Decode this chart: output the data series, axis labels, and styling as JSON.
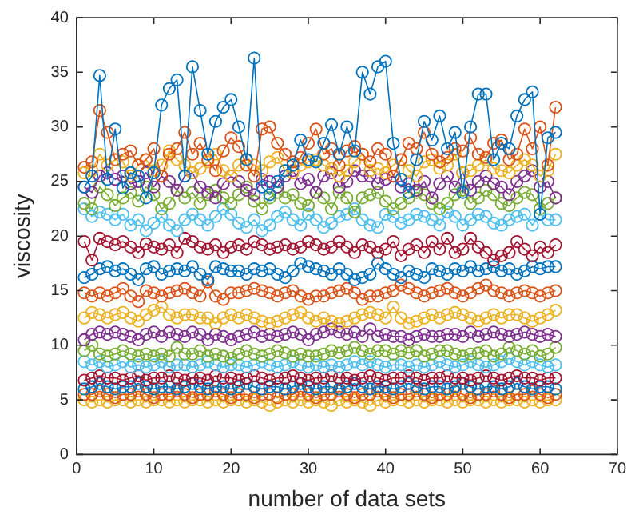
{
  "chart_data": {
    "type": "line",
    "xlabel": "number of data sets",
    "ylabel": "viscosity",
    "marker": "circle",
    "line_style": "solid",
    "grid": false,
    "legend": false,
    "xlim": [
      0,
      70
    ],
    "xticks": [
      0,
      10,
      20,
      30,
      40,
      50,
      60,
      70
    ],
    "ylim": [
      0,
      40
    ],
    "yticks": [
      0,
      5,
      10,
      15,
      20,
      25,
      30,
      35,
      40
    ],
    "x": [
      1,
      2,
      3,
      4,
      5,
      6,
      7,
      8,
      9,
      10,
      11,
      12,
      13,
      14,
      15,
      16,
      17,
      18,
      19,
      20,
      21,
      22,
      23,
      24,
      25,
      26,
      27,
      28,
      29,
      30,
      31,
      32,
      33,
      34,
      35,
      36,
      37,
      38,
      39,
      40,
      41,
      42,
      43,
      44,
      45,
      46,
      47,
      48,
      49,
      50,
      51,
      52,
      53,
      54,
      55,
      56,
      57,
      58,
      59,
      60,
      61,
      62
    ],
    "series": [
      {
        "color": "#0072bd",
        "values": [
          24.5,
          25.5,
          34.7,
          25.2,
          29.8,
          24.4,
          25.8,
          25.5,
          23.5,
          25.8,
          32.0,
          33.5,
          34.3,
          25.5,
          35.5,
          31.5,
          27.5,
          30.5,
          31.8,
          32.5,
          30.0,
          27.0,
          36.3,
          24.5,
          23.8,
          25.0,
          26.0,
          26.5,
          28.8,
          27.0,
          26.8,
          28.5,
          30.2,
          27.5,
          30.0,
          27.8,
          35.0,
          33.0,
          35.5,
          36.0,
          28.5,
          25.2,
          24.0,
          27.0,
          30.5,
          28.8,
          31.0,
          28.0,
          29.5,
          24.0,
          30.0,
          33.0,
          33.0,
          27.0,
          28.5,
          28.0,
          31.0,
          32.5,
          33.2,
          22.0,
          29.0,
          29.5
        ]
      },
      {
        "color": "#d95319",
        "values": [
          26.3,
          26.8,
          31.5,
          29.5,
          27.0,
          27.5,
          27.8,
          26.5,
          27.0,
          28.0,
          25.5,
          27.5,
          28.0,
          29.5,
          27.5,
          28.5,
          27.0,
          26.0,
          27.8,
          29.0,
          28.2,
          26.5,
          25.5,
          29.8,
          30.0,
          28.5,
          27.5,
          26.8,
          27.2,
          28.5,
          29.8,
          27.5,
          28.0,
          26.5,
          27.8,
          28.2,
          27.5,
          26.8,
          28.0,
          27.5,
          25.5,
          27.0,
          28.5,
          28.0,
          29.5,
          27.5,
          26.8,
          27.2,
          28.0,
          27.8,
          29.0,
          27.5,
          27.2,
          28.5,
          28.8,
          27.0,
          27.5,
          29.8,
          28.0,
          30.0,
          26.5,
          31.8
        ]
      },
      {
        "color": "#edb120",
        "values": [
          25.8,
          26.0,
          27.5,
          26.5,
          27.0,
          26.8,
          25.5,
          26.5,
          27.0,
          26.0,
          26.5,
          27.8,
          27.0,
          26.5,
          25.8,
          26.2,
          26.8,
          27.5,
          26.0,
          25.5,
          26.5,
          27.0,
          26.5,
          26.0,
          26.8,
          27.2,
          26.0,
          25.8,
          26.5,
          26.8,
          27.0,
          26.5,
          26.2,
          25.5,
          26.0,
          26.8,
          27.5,
          26.0,
          26.2,
          25.8,
          26.5,
          27.0,
          26.0,
          25.5,
          26.8,
          27.0,
          26.2,
          26.5,
          27.5,
          25.8,
          26.0,
          26.5,
          27.0,
          26.2,
          26.0,
          25.8,
          26.5,
          27.0,
          26.5,
          25.5,
          26.0,
          27.5
        ]
      },
      {
        "color": "#7e2f8e",
        "values": [
          24.5,
          24.0,
          25.5,
          25.8,
          25.2,
          25.5,
          24.8,
          25.0,
          25.8,
          24.5,
          25.5,
          25.0,
          24.2,
          25.5,
          25.8,
          24.5,
          24.0,
          23.5,
          24.8,
          25.5,
          25.0,
          24.2,
          23.8,
          25.2,
          25.0,
          24.5,
          25.5,
          26.0,
          24.8,
          25.2,
          24.0,
          25.5,
          25.8,
          24.5,
          25.0,
          26.0,
          25.5,
          25.5,
          24.8,
          25.2,
          25.5,
          24.5,
          24.8,
          24.2,
          25.0,
          23.5,
          24.8,
          25.5,
          24.5,
          25.8,
          24.2,
          25.0,
          25.5,
          24.8,
          24.5,
          23.8,
          25.0,
          25.5,
          26.0,
          24.5,
          25.0,
          23.5
        ]
      },
      {
        "color": "#77ac30",
        "values": [
          23.0,
          22.5,
          24.5,
          23.8,
          22.8,
          23.5,
          24.0,
          23.2,
          24.5,
          23.8,
          22.5,
          23.0,
          24.2,
          23.5,
          24.0,
          23.0,
          23.8,
          24.2,
          23.5,
          23.0,
          23.8,
          24.5,
          23.2,
          22.5,
          23.5,
          24.0,
          23.5,
          23.8,
          23.0,
          22.8,
          24.0,
          23.5,
          22.5,
          24.0,
          23.5,
          22.2,
          23.5,
          23.8,
          24.0,
          23.2,
          22.5,
          23.0,
          23.5,
          24.0,
          23.8,
          23.0,
          22.5,
          23.0,
          23.8,
          24.2,
          23.0,
          23.5,
          24.2,
          23.8,
          23.0,
          22.8,
          23.5,
          24.0,
          23.8,
          22.5,
          23.0,
          23.5
        ]
      },
      {
        "color": "#4dbeee",
        "values": [
          22.5,
          21.8,
          22.2,
          22.0,
          21.5,
          22.0,
          21.0,
          21.5,
          20.5,
          21.2,
          21.8,
          21.0,
          20.5,
          21.5,
          22.0,
          21.5,
          21.0,
          21.8,
          22.5,
          22.0,
          21.2,
          20.8,
          21.5,
          20.5,
          21.0,
          21.8,
          22.2,
          21.5,
          21.0,
          22.0,
          21.5,
          20.8,
          21.2,
          21.8,
          22.0,
          22.5,
          21.5,
          21.0,
          20.8,
          22.0,
          21.8,
          21.2,
          21.5,
          22.0,
          21.8,
          21.5,
          21.0,
          22.2,
          21.8,
          21.0,
          21.5,
          22.0,
          21.8,
          21.2,
          21.0,
          21.5,
          21.8,
          22.0,
          21.0,
          22.0,
          21.5,
          21.5
        ]
      },
      {
        "color": "#a2142f",
        "values": [
          19.5,
          17.8,
          19.8,
          19.5,
          19.2,
          19.5,
          19.0,
          18.5,
          19.3,
          19.0,
          18.8,
          19.2,
          18.5,
          19.8,
          19.5,
          19.0,
          18.8,
          19.2,
          18.5,
          19.0,
          19.2,
          18.8,
          19.5,
          19.2,
          18.8,
          19.0,
          19.2,
          18.8,
          19.0,
          19.5,
          19.2,
          18.8,
          19.0,
          19.5,
          19.0,
          18.5,
          19.2,
          19.0,
          18.5,
          18.8,
          19.5,
          18.2,
          18.8,
          19.2,
          18.5,
          19.5,
          18.8,
          19.8,
          18.5,
          18.8,
          19.8,
          19.0,
          18.5,
          17.8,
          18.2,
          18.5,
          19.5,
          18.8,
          18.2,
          19.0,
          18.5,
          19.2
        ]
      },
      {
        "color": "#0072bd",
        "values": [
          16.2,
          16.5,
          17.0,
          17.2,
          16.8,
          17.0,
          16.5,
          16.0,
          17.0,
          17.2,
          16.5,
          16.8,
          17.0,
          16.8,
          17.2,
          16.5,
          16.0,
          17.2,
          17.0,
          16.8,
          16.8,
          16.5,
          17.0,
          16.8,
          17.0,
          16.5,
          16.2,
          16.8,
          17.5,
          17.2,
          17.0,
          16.8,
          16.5,
          17.0,
          16.5,
          16.0,
          16.2,
          16.5,
          17.5,
          17.0,
          16.5,
          16.2,
          16.8,
          16.5,
          16.2,
          17.0,
          16.8,
          16.5,
          17.0,
          16.8,
          17.2,
          16.8,
          17.0,
          17.2,
          16.8,
          17.0,
          16.5,
          16.8,
          17.2,
          17.0,
          17.2,
          17.2
        ]
      },
      {
        "color": "#d95319",
        "values": [
          14.8,
          14.5,
          14.8,
          14.5,
          14.8,
          15.2,
          14.5,
          14.0,
          15.0,
          14.8,
          14.5,
          14.8,
          15.0,
          15.2,
          14.8,
          14.5,
          15.8,
          14.5,
          14.2,
          14.8,
          14.8,
          15.0,
          15.2,
          15.0,
          14.8,
          14.5,
          14.8,
          15.0,
          14.5,
          14.2,
          14.5,
          14.5,
          14.8,
          15.0,
          15.2,
          14.8,
          14.2,
          14.5,
          14.5,
          14.8,
          15.0,
          15.5,
          15.2,
          14.8,
          14.5,
          14.8,
          15.0,
          15.2,
          14.8,
          14.5,
          14.8,
          15.2,
          15.5,
          15.0,
          14.8,
          14.5,
          14.8,
          15.0,
          14.8,
          14.5,
          14.8,
          15.0
        ]
      },
      {
        "color": "#edb120",
        "values": [
          12.5,
          13.0,
          12.8,
          12.5,
          12.8,
          13.0,
          12.5,
          12.2,
          12.8,
          13.2,
          13.5,
          12.8,
          12.5,
          12.8,
          12.8,
          12.5,
          12.5,
          12.0,
          12.5,
          12.8,
          12.5,
          12.8,
          12.5,
          12.2,
          12.0,
          12.2,
          12.5,
          12.8,
          13.0,
          12.5,
          12.2,
          12.5,
          12.2,
          12.0,
          12.2,
          12.5,
          12.8,
          13.0,
          12.8,
          12.5,
          13.5,
          12.5,
          12.0,
          12.2,
          12.5,
          12.8,
          12.5,
          12.8,
          13.0,
          12.8,
          12.5,
          12.2,
          12.5,
          12.8,
          12.5,
          12.8,
          12.8,
          12.5,
          12.2,
          12.5,
          12.8,
          13.2
        ]
      },
      {
        "color": "#7e2f8e",
        "values": [
          10.5,
          11.0,
          11.2,
          11.0,
          11.2,
          11.0,
          10.8,
          10.5,
          11.0,
          11.2,
          10.8,
          11.2,
          11.0,
          10.8,
          11.2,
          11.0,
          10.5,
          11.0,
          10.8,
          10.5,
          10.8,
          11.0,
          11.2,
          10.8,
          11.0,
          10.8,
          11.0,
          11.2,
          11.0,
          10.5,
          11.0,
          11.2,
          11.5,
          11.2,
          11.0,
          11.2,
          10.8,
          11.5,
          10.8,
          11.0,
          10.8,
          10.8,
          10.5,
          10.8,
          11.0,
          10.8,
          10.8,
          11.0,
          11.0,
          10.8,
          11.2,
          10.8,
          11.0,
          11.2,
          11.0,
          10.8,
          11.0,
          11.2,
          11.0,
          10.8,
          11.0,
          10.8
        ]
      },
      {
        "color": "#77ac30",
        "values": [
          9.5,
          10.0,
          9.2,
          9.0,
          9.2,
          9.5,
          9.2,
          9.0,
          9.2,
          9.0,
          9.2,
          9.0,
          9.8,
          9.2,
          9.2,
          9.5,
          9.0,
          9.2,
          9.0,
          8.8,
          9.2,
          9.5,
          9.2,
          9.0,
          9.2,
          9.5,
          9.3,
          9.0,
          9.2,
          9.0,
          9.0,
          9.2,
          9.5,
          9.3,
          9.5,
          9.8,
          9.5,
          9.2,
          9.5,
          9.5,
          9.2,
          9.5,
          9.3,
          9.5,
          9.0,
          9.2,
          9.5,
          9.5,
          9.2,
          9.0,
          9.2,
          9.3,
          9.5,
          9.0,
          9.2,
          9.8,
          9.5,
          9.2,
          9.5,
          9.0,
          9.2,
          9.8
        ]
      },
      {
        "color": "#4dbeee",
        "values": [
          8.5,
          8.2,
          8.5,
          8.0,
          8.2,
          8.5,
          8.0,
          8.2,
          8.0,
          8.2,
          8.5,
          8.0,
          8.2,
          8.2,
          8.0,
          8.2,
          8.5,
          8.2,
          8.0,
          8.2,
          8.2,
          8.0,
          8.2,
          8.5,
          8.2,
          8.0,
          8.2,
          8.5,
          8.2,
          8.0,
          8.2,
          8.0,
          8.2,
          8.0,
          8.2,
          8.5,
          8.2,
          8.5,
          8.2,
          8.0,
          8.2,
          8.2,
          8.0,
          8.2,
          8.0,
          8.2,
          8.5,
          8.2,
          8.0,
          8.2,
          8.5,
          8.2,
          8.0,
          8.2,
          8.5,
          8.8,
          8.5,
          8.2,
          8.5,
          8.2,
          8.0,
          8.2
        ]
      },
      {
        "color": "#a2142f",
        "values": [
          6.8,
          7.0,
          7.2,
          7.0,
          7.0,
          6.8,
          7.0,
          7.2,
          6.8,
          7.0,
          7.0,
          7.2,
          7.0,
          6.8,
          7.0,
          7.0,
          6.8,
          7.2,
          7.0,
          7.0,
          6.8,
          7.0,
          7.2,
          7.0,
          6.8,
          7.0,
          7.0,
          7.2,
          7.0,
          6.8,
          7.0,
          7.0,
          7.2,
          7.0,
          7.0,
          6.8,
          7.0,
          7.2,
          7.0,
          6.8,
          7.0,
          7.0,
          7.2,
          7.0,
          6.8,
          7.0,
          7.0,
          7.2,
          7.0,
          7.0,
          6.8,
          7.0,
          7.2,
          7.0,
          6.8,
          7.0,
          7.2,
          7.0,
          7.0,
          6.8,
          7.0,
          7.0
        ]
      },
      {
        "color": "#0072bd",
        "values": [
          6.0,
          6.2,
          6.5,
          6.2,
          6.0,
          6.2,
          6.2,
          6.5,
          6.2,
          6.0,
          6.2,
          6.2,
          6.0,
          6.2,
          6.5,
          6.2,
          6.0,
          6.2,
          6.2,
          6.0,
          6.2,
          6.5,
          6.2,
          6.0,
          6.2,
          6.2,
          6.0,
          6.2,
          6.5,
          6.2,
          6.0,
          6.2,
          6.2,
          6.0,
          6.2,
          6.5,
          6.2,
          6.0,
          6.2,
          6.2,
          6.0,
          6.2,
          6.5,
          6.2,
          6.0,
          6.2,
          6.2,
          6.0,
          6.2,
          6.5,
          6.2,
          6.0,
          6.2,
          6.2,
          6.0,
          6.2,
          6.5,
          6.2,
          6.0,
          6.2,
          6.2,
          6.0
        ]
      },
      {
        "color": "#d95319",
        "values": [
          5.5,
          5.5,
          5.8,
          5.5,
          5.2,
          5.5,
          5.5,
          5.8,
          5.5,
          5.2,
          5.5,
          5.5,
          5.8,
          5.5,
          5.2,
          5.5,
          5.5,
          5.8,
          5.5,
          5.2,
          5.5,
          5.5,
          5.2,
          5.5,
          5.5,
          5.2,
          5.5,
          5.5,
          5.8,
          5.5,
          5.2,
          5.5,
          5.5,
          5.8,
          5.5,
          5.2,
          5.5,
          5.5,
          5.8,
          5.5,
          5.2,
          5.5,
          5.5,
          5.8,
          5.5,
          5.2,
          5.5,
          5.5,
          5.8,
          5.5,
          5.2,
          5.5,
          5.5,
          5.8,
          5.5,
          5.2,
          5.5,
          5.5,
          5.8,
          5.5,
          5.2,
          5.5
        ]
      },
      {
        "color": "#edb120",
        "values": [
          5.0,
          4.8,
          5.0,
          4.8,
          5.0,
          5.0,
          4.8,
          5.0,
          4.8,
          5.0,
          5.0,
          4.8,
          5.0,
          4.8,
          5.0,
          5.0,
          4.8,
          5.0,
          4.8,
          5.0,
          5.0,
          4.8,
          5.0,
          4.8,
          4.5,
          4.8,
          5.0,
          4.8,
          5.0,
          4.8,
          5.0,
          4.8,
          4.5,
          5.0,
          4.8,
          5.0,
          4.8,
          4.5,
          5.0,
          4.8,
          5.0,
          5.0,
          4.8,
          5.0,
          4.8,
          5.0,
          5.0,
          4.8,
          5.0,
          4.8,
          5.0,
          5.0,
          4.8,
          5.0,
          4.8,
          5.0,
          5.0,
          4.8,
          5.0,
          4.8,
          5.0,
          5.0
        ]
      }
    ]
  }
}
